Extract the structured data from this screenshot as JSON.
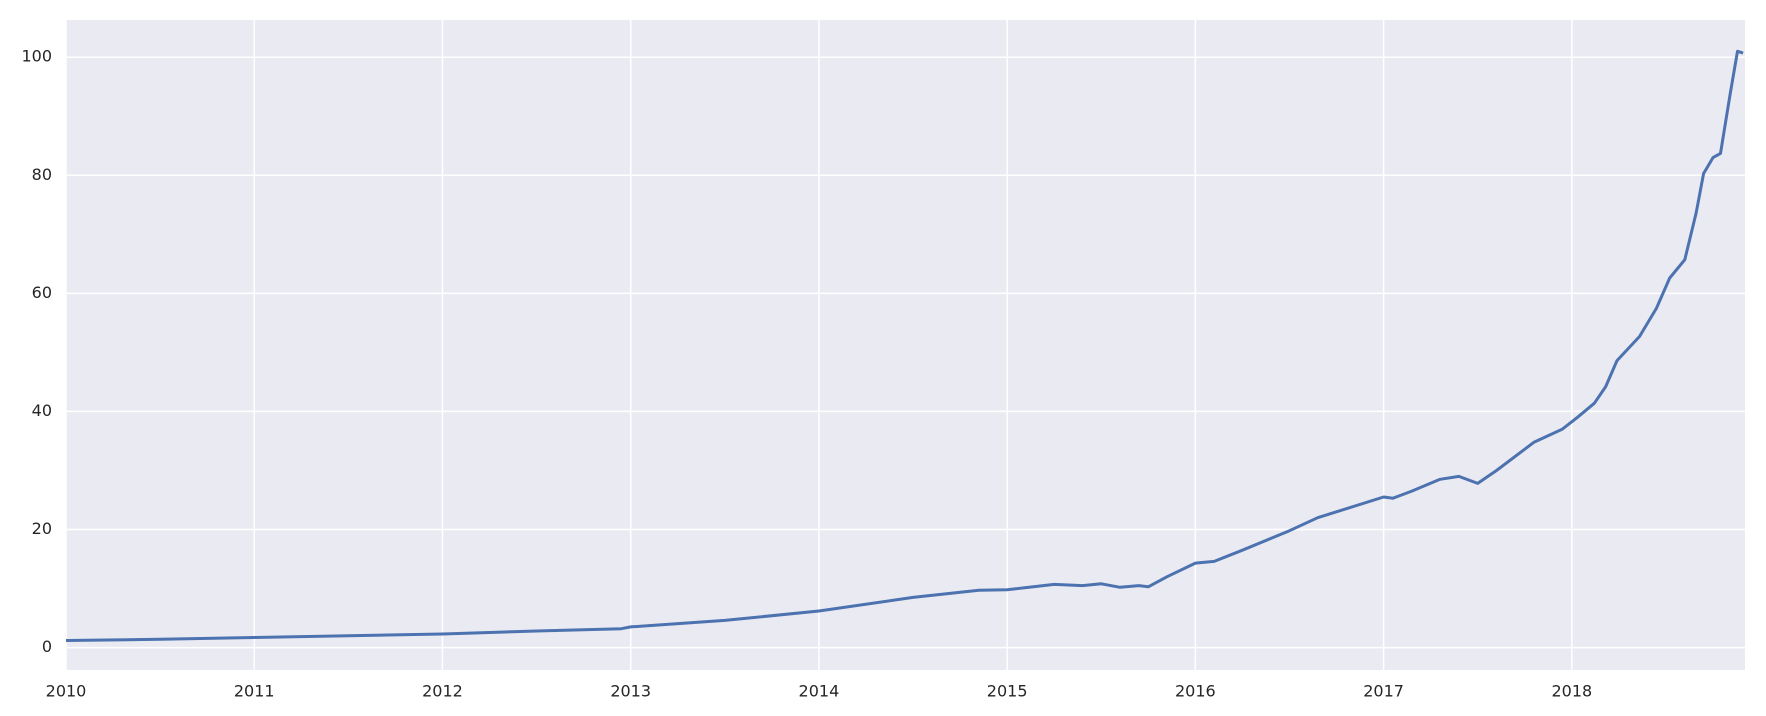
{
  "chart_data": {
    "type": "line",
    "x": [
      2010.0,
      2010.5,
      2011.0,
      2011.5,
      2012.0,
      2012.5,
      2012.95,
      2013.0,
      2013.5,
      2014.0,
      2014.5,
      2014.85,
      2015.0,
      2015.25,
      2015.4,
      2015.5,
      2015.6,
      2015.7,
      2015.75,
      2015.85,
      2016.0,
      2016.1,
      2016.25,
      2016.5,
      2016.65,
      2017.0,
      2017.05,
      2017.15,
      2017.3,
      2017.4,
      2017.5,
      2017.6,
      2017.8,
      2017.95,
      2018.03,
      2018.12,
      2018.18,
      2018.24,
      2018.36,
      2018.45,
      2018.52,
      2018.6,
      2018.66,
      2018.7,
      2018.75,
      2018.79,
      2018.84,
      2018.88,
      2018.91
    ],
    "series": [
      {
        "color": "#4c72b0",
        "values": [
          1.2,
          1.4,
          1.7,
          2.0,
          2.3,
          2.8,
          3.2,
          3.5,
          4.6,
          6.2,
          8.5,
          9.7,
          9.8,
          10.7,
          10.5,
          10.8,
          10.2,
          10.5,
          10.3,
          12.0,
          14.3,
          14.6,
          16.5,
          19.8,
          22.0,
          25.5,
          25.3,
          26.5,
          28.5,
          29.0,
          27.8,
          30.0,
          34.8,
          37.0,
          39.0,
          41.4,
          44.2,
          48.6,
          52.7,
          57.5,
          62.6,
          65.7,
          73.6,
          80.3,
          83.0,
          83.7,
          93.5,
          101.0,
          100.7
        ]
      }
    ],
    "xlim": [
      2010,
      2018.92
    ],
    "xticks": [
      2010,
      2011,
      2012,
      2013,
      2014,
      2015,
      2016,
      2017,
      2018
    ],
    "ylim": [
      -3.8,
      106.3
    ],
    "yticks": [
      0,
      20,
      40,
      60,
      80,
      100
    ],
    "grid": true,
    "background": "#eaeaf2"
  }
}
